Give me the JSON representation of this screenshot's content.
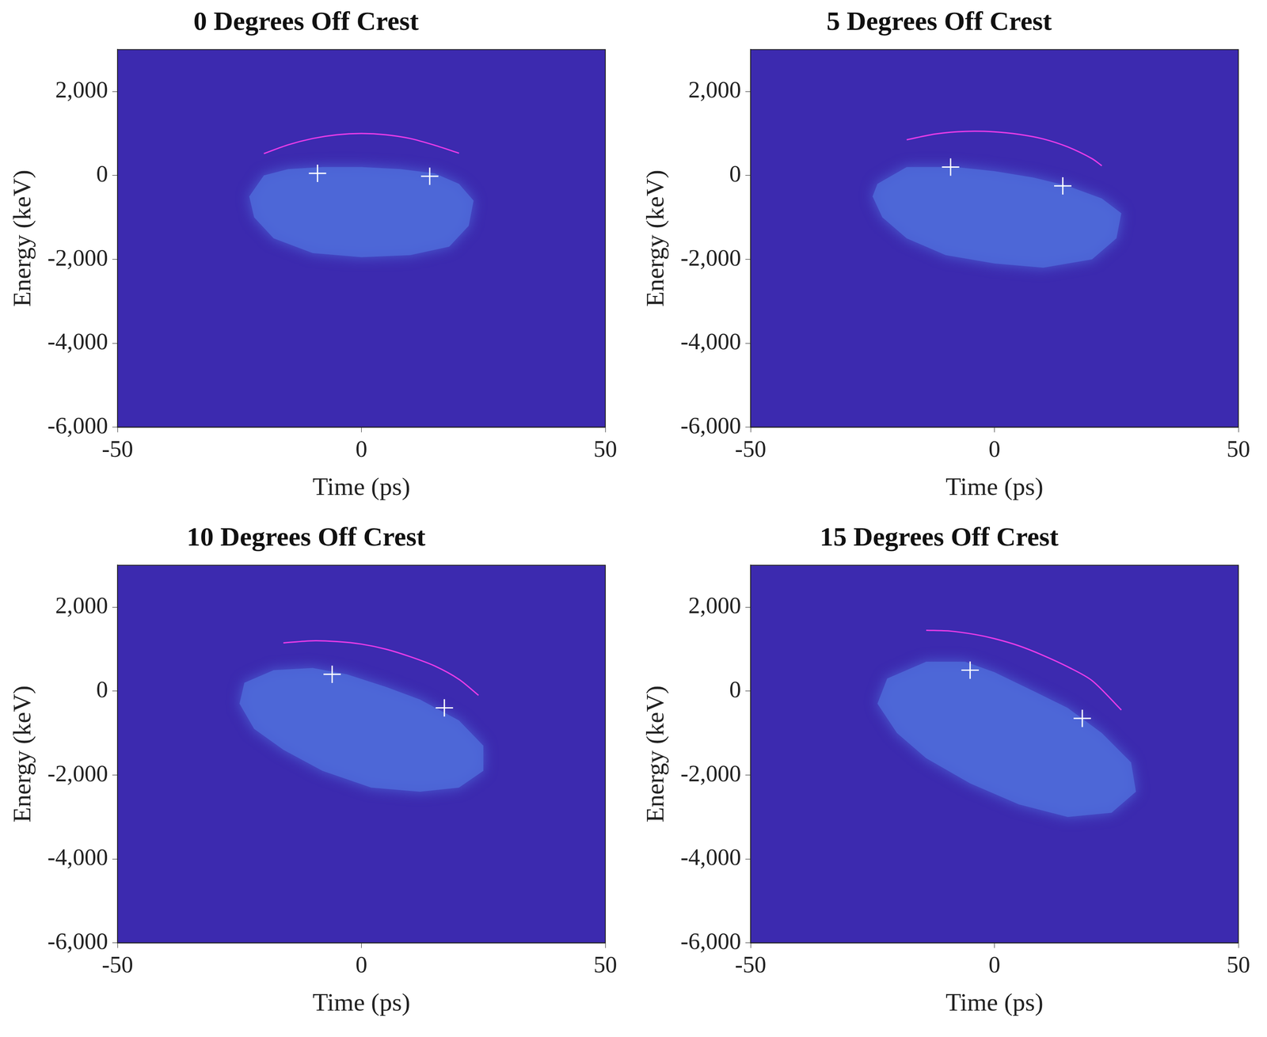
{
  "chart_data": [
    {
      "type": "line",
      "title": "0 Degrees Off Crest",
      "x_label": "Time (ps)",
      "y_label": "Energy (keV)",
      "xlim": [
        -50,
        50
      ],
      "xticks": [
        -50,
        0,
        50
      ],
      "ylim": [
        -6000,
        3000
      ],
      "yticks": [
        -6000,
        -4000,
        -2000,
        0,
        2000
      ],
      "grid": false,
      "series": [
        {
          "type": "area",
          "color": "#4d68d8",
          "x": [
            -20,
            -15,
            -8,
            0,
            8,
            15,
            20,
            23,
            22,
            18,
            10,
            0,
            -10,
            -18,
            -22,
            -23
          ],
          "values": [
            0,
            150,
            200,
            200,
            150,
            50,
            -200,
            -600,
            -1200,
            -1700,
            -1900,
            -1950,
            -1850,
            -1500,
            -1000,
            -500
          ]
        },
        {
          "type": "line",
          "color": "#e83ce8",
          "line_style": "solid",
          "x": [
            -20,
            -15,
            -10,
            -5,
            0,
            5,
            10,
            15,
            20
          ],
          "values": [
            520,
            730,
            880,
            970,
            1000,
            970,
            880,
            720,
            530
          ]
        },
        {
          "type": "scatter",
          "color": "#ffffff",
          "marker": "cross",
          "x": [
            -9,
            14
          ],
          "values": [
            50,
            -20
          ]
        }
      ]
    },
    {
      "type": "line",
      "title": "5 Degrees Off Crest",
      "x_label": "Time (ps)",
      "y_label": "Energy (keV)",
      "xlim": [
        -50,
        50
      ],
      "xticks": [
        -50,
        0,
        50
      ],
      "ylim": [
        -6000,
        3000
      ],
      "yticks": [
        -6000,
        -4000,
        -2000,
        0,
        2000
      ],
      "grid": false,
      "series": [
        {
          "type": "area",
          "color": "#4d68d8",
          "x": [
            -24,
            -18,
            -8,
            0,
            8,
            15,
            22,
            26,
            25,
            20,
            10,
            0,
            -10,
            -18,
            -23,
            -25
          ],
          "values": [
            -200,
            200,
            200,
            100,
            -50,
            -250,
            -550,
            -900,
            -1500,
            -2000,
            -2200,
            -2100,
            -1900,
            -1500,
            -1000,
            -500
          ]
        },
        {
          "type": "line",
          "color": "#e83ce8",
          "line_style": "solid",
          "x": [
            -18,
            -12,
            -6,
            0,
            5,
            10,
            15,
            20,
            22
          ],
          "values": [
            850,
            990,
            1050,
            1040,
            980,
            870,
            680,
            400,
            230
          ]
        },
        {
          "type": "scatter",
          "color": "#ffffff",
          "marker": "cross",
          "x": [
            -9,
            14
          ],
          "values": [
            200,
            -250
          ]
        }
      ]
    },
    {
      "type": "line",
      "title": "10 Degrees Off Crest",
      "x_label": "Time (ps)",
      "y_label": "Energy (keV)",
      "xlim": [
        -50,
        50
      ],
      "xticks": [
        -50,
        0,
        50
      ],
      "ylim": [
        -6000,
        3000
      ],
      "yticks": [
        -6000,
        -4000,
        -2000,
        0,
        2000
      ],
      "grid": false,
      "series": [
        {
          "type": "area",
          "color": "#4d68d8",
          "x": [
            -24,
            -18,
            -10,
            -3,
            5,
            12,
            20,
            25,
            25,
            20,
            12,
            2,
            -8,
            -16,
            -22,
            -25
          ],
          "values": [
            200,
            500,
            550,
            400,
            100,
            -200,
            -700,
            -1300,
            -1900,
            -2300,
            -2400,
            -2300,
            -1900,
            -1400,
            -900,
            -300
          ]
        },
        {
          "type": "line",
          "color": "#e83ce8",
          "line_style": "solid",
          "x": [
            -16,
            -10,
            -5,
            0,
            5,
            10,
            15,
            20,
            24
          ],
          "values": [
            1150,
            1200,
            1180,
            1120,
            1000,
            820,
            600,
            280,
            -100
          ]
        },
        {
          "type": "scatter",
          "color": "#ffffff",
          "marker": "cross",
          "x": [
            -6,
            17
          ],
          "values": [
            400,
            -400
          ]
        }
      ]
    },
    {
      "type": "line",
      "title": "15 Degrees Off Crest",
      "x_label": "Time (ps)",
      "y_label": "Energy (keV)",
      "xlim": [
        -50,
        50
      ],
      "xticks": [
        -50,
        0,
        50
      ],
      "ylim": [
        -6000,
        3000
      ],
      "yticks": [
        -6000,
        -4000,
        -2000,
        0,
        2000
      ],
      "grid": false,
      "series": [
        {
          "type": "area",
          "color": "#4d68d8",
          "x": [
            -22,
            -14,
            -6,
            0,
            8,
            15,
            22,
            28,
            29,
            24,
            15,
            5,
            -5,
            -14,
            -20,
            -24
          ],
          "values": [
            300,
            700,
            700,
            450,
            0,
            -400,
            -1000,
            -1700,
            -2400,
            -2900,
            -3000,
            -2700,
            -2200,
            -1600,
            -1000,
            -300
          ]
        },
        {
          "type": "line",
          "color": "#e83ce8",
          "line_style": "solid",
          "x": [
            -14,
            -9,
            -4,
            0,
            5,
            10,
            15,
            20,
            26
          ],
          "values": [
            1450,
            1430,
            1350,
            1250,
            1080,
            850,
            580,
            250,
            -450
          ]
        },
        {
          "type": "scatter",
          "color": "#ffffff",
          "marker": "cross",
          "x": [
            -5,
            18
          ],
          "values": [
            500,
            -650
          ]
        }
      ]
    }
  ]
}
